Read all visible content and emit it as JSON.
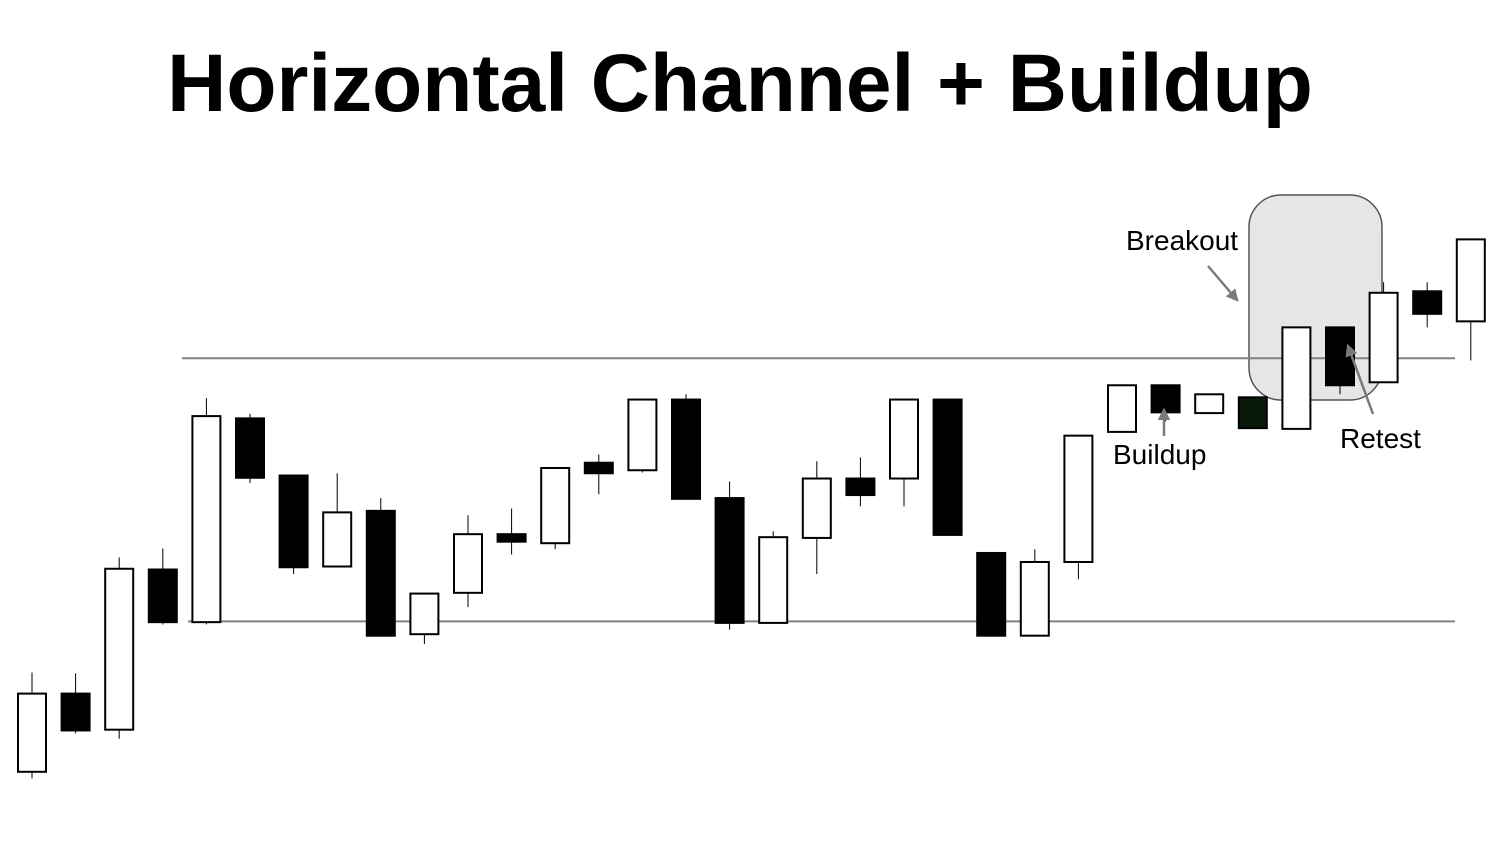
{
  "chart_data": {
    "type": "candlestick",
    "title": "Horizontal Channel + Buildup",
    "xlabel": "",
    "ylabel": "",
    "grid": false,
    "colors": {
      "bullish_body": "#ffffff",
      "bearish_body": "#000000",
      "last_buildup_body": "#0a1a0a",
      "outline": "#000000",
      "channel_line": "#808080",
      "highlight_fill": "#e6e6e6",
      "highlight_stroke": "#555555",
      "arrow": "#7a7a7a"
    },
    "ylim": [
      0,
      100
    ],
    "channel": {
      "resistance": 65,
      "support": 30
    },
    "candles": [
      {
        "open": 10.0,
        "close": 20.4,
        "high": 23.2,
        "low": 9.1
      },
      {
        "open": 20.4,
        "close": 15.5,
        "high": 23.1,
        "low": 15.1
      },
      {
        "open": 15.6,
        "close": 37.0,
        "high": 38.5,
        "low": 14.4
      },
      {
        "open": 36.9,
        "close": 29.9,
        "high": 39.7,
        "low": 29.6
      },
      {
        "open": 29.9,
        "close": 57.3,
        "high": 59.7,
        "low": 29.6
      },
      {
        "open": 57.0,
        "close": 49.1,
        "high": 57.6,
        "low": 48.4
      },
      {
        "open": 49.4,
        "close": 37.2,
        "high": 49.4,
        "low": 36.3
      },
      {
        "open": 37.3,
        "close": 44.5,
        "high": 49.7,
        "low": 37.3
      },
      {
        "open": 44.7,
        "close": 28.1,
        "high": 46.4,
        "low": 28.1
      },
      {
        "open": 28.3,
        "close": 33.7,
        "high": 33.7,
        "low": 27.0
      },
      {
        "open": 33.8,
        "close": 41.6,
        "high": 44.1,
        "low": 31.9
      },
      {
        "open": 41.6,
        "close": 40.6,
        "high": 45.0,
        "low": 38.9
      },
      {
        "open": 40.4,
        "close": 50.4,
        "high": 50.4,
        "low": 39.6
      },
      {
        "open": 51.1,
        "close": 49.7,
        "high": 52.2,
        "low": 46.9
      },
      {
        "open": 50.1,
        "close": 59.5,
        "high": 59.5,
        "low": 49.8
      },
      {
        "open": 59.5,
        "close": 46.3,
        "high": 60.2,
        "low": 46.3
      },
      {
        "open": 46.4,
        "close": 29.8,
        "high": 48.6,
        "low": 28.9
      },
      {
        "open": 29.8,
        "close": 41.2,
        "high": 42.0,
        "low": 29.8
      },
      {
        "open": 41.1,
        "close": 49.0,
        "high": 51.3,
        "low": 36.3
      },
      {
        "open": 49.0,
        "close": 46.8,
        "high": 51.8,
        "low": 45.3
      },
      {
        "open": 49.0,
        "close": 59.5,
        "high": 59.5,
        "low": 45.3
      },
      {
        "open": 59.5,
        "close": 41.5,
        "high": 59.5,
        "low": 41.5
      },
      {
        "open": 39.1,
        "close": 28.1,
        "high": 39.1,
        "low": 28.1
      },
      {
        "open": 28.1,
        "close": 37.9,
        "high": 39.6,
        "low": 28.1
      },
      {
        "open": 37.9,
        "close": 54.7,
        "high": 54.7,
        "low": 35.6
      },
      {
        "open": 55.2,
        "close": 61.4,
        "high": 61.4,
        "low": 55.2
      },
      {
        "open": 61.4,
        "close": 57.8,
        "high": 61.4,
        "low": 56.6
      },
      {
        "open": 57.7,
        "close": 60.2,
        "high": 60.2,
        "low": 57.7
      },
      {
        "open": 59.8,
        "close": 55.7,
        "high": 59.8,
        "low": 55.7
      },
      {
        "open": 55.6,
        "close": 69.1,
        "high": 69.1,
        "low": 55.6
      },
      {
        "open": 69.1,
        "close": 61.4,
        "high": 69.1,
        "low": 60.2
      },
      {
        "open": 61.8,
        "close": 73.7,
        "high": 75.1,
        "low": 61.8
      },
      {
        "open": 73.9,
        "close": 70.9,
        "high": 75.1,
        "low": 69.1
      },
      {
        "open": 69.9,
        "close": 80.8,
        "high": 80.8,
        "low": 64.7
      }
    ],
    "annotations": [
      {
        "text": "Breakout"
      },
      {
        "text": "Buildup"
      },
      {
        "text": "Retest"
      }
    ]
  }
}
